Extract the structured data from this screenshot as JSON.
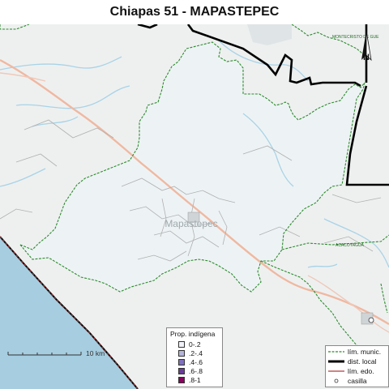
{
  "title": "Chiapas 51 - MAPASTEPEC",
  "map": {
    "main_label": "Mapastepec",
    "place_labels": [
      "MONTECRISTO DE GUE",
      "ACACOYAGUA"
    ],
    "north_label": "N",
    "scale_label": "10 km",
    "colors": {
      "sea": "#a6cde0",
      "land": "#eef0f0",
      "district_fill": "#edf3f5",
      "municipal_border": "#2e8b2e",
      "district_border": "#000000",
      "state_border": "#b23a3a",
      "road": "#f0b8a0",
      "river": "#a9d3e6"
    }
  },
  "legend_indigena": {
    "title": "Prop. indígena",
    "items": [
      {
        "label": "0-.2",
        "color": "#f2f2fa"
      },
      {
        "label": ".2-.4",
        "color": "#b4b4dc"
      },
      {
        "label": ".4-.6",
        "color": "#8070c0"
      },
      {
        "label": ".6-.8",
        "color": "#6a3d9a"
      },
      {
        "label": ".8-1",
        "color": "#8b0060"
      }
    ]
  },
  "legend_lines": {
    "items": [
      {
        "label": "lím. munic.",
        "icon": "dashed-green-line"
      },
      {
        "label": "dist. local",
        "icon": "thick-black-line"
      },
      {
        "label": "lím. edo.",
        "icon": "red-line"
      },
      {
        "label": "casilla",
        "icon": "small-circle"
      }
    ]
  }
}
